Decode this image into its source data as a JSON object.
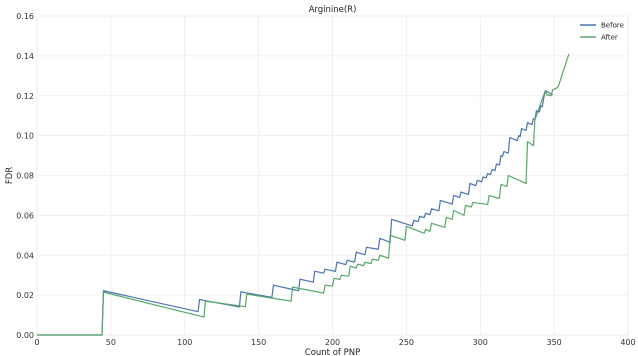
{
  "chart_data": {
    "type": "line",
    "title": "Arginine(R)",
    "xlabel": "Count of PNP",
    "ylabel": "FDR",
    "xlim": [
      0,
      400
    ],
    "ylim": [
      0,
      0.16
    ],
    "xticks": [
      "0",
      "50",
      "100",
      "150",
      "200",
      "250",
      "300",
      "350",
      "400"
    ],
    "yticks": [
      "0.00",
      "0.02",
      "0.04",
      "0.06",
      "0.08",
      "0.10",
      "0.12",
      "0.14",
      "0.16"
    ],
    "grid": true,
    "legend_position": "top-right",
    "series": [
      {
        "name": "Before",
        "color": "#4c72b0",
        "x": [
          0,
          44,
          45,
          109,
          110,
          114,
          137,
          138,
          142,
          159,
          160,
          172,
          177,
          178,
          184,
          187,
          188,
          192,
          194,
          195,
          198,
          202,
          203,
          207,
          209,
          210,
          212,
          215,
          216,
          220,
          222,
          223,
          231,
          232,
          239,
          240,
          254,
          255,
          258,
          259,
          262,
          263,
          266,
          267,
          272,
          273,
          281,
          282,
          286,
          287,
          292,
          293,
          297,
          298,
          301,
          302,
          304,
          305,
          307,
          308,
          310,
          311,
          313,
          314,
          315,
          316,
          319,
          320,
          325,
          326,
          327,
          328,
          331,
          332,
          335,
          336,
          337,
          338,
          340,
          341,
          342,
          343,
          344,
          349
        ],
        "y": [
          0,
          0,
          0.0222,
          0.0117,
          0.0178,
          0.0172,
          0.0141,
          0.0217,
          0.0211,
          0.0189,
          0.025,
          0.023,
          0.0222,
          0.028,
          0.027,
          0.0265,
          0.032,
          0.0313,
          0.031,
          0.033,
          0.0325,
          0.0319,
          0.0365,
          0.0357,
          0.0353,
          0.0375,
          0.0371,
          0.0366,
          0.0415,
          0.0407,
          0.0403,
          0.044,
          0.043,
          0.0485,
          0.0465,
          0.058,
          0.0547,
          0.0575,
          0.0569,
          0.0595,
          0.0589,
          0.061,
          0.0604,
          0.0633,
          0.0623,
          0.0675,
          0.0656,
          0.07,
          0.069,
          0.0717,
          0.0705,
          0.076,
          0.0749,
          0.0776,
          0.0768,
          0.0793,
          0.0788,
          0.081,
          0.0805,
          0.083,
          0.0825,
          0.0858,
          0.0853,
          0.09,
          0.0895,
          0.092,
          0.0912,
          0.099,
          0.0975,
          0.1,
          0.0995,
          0.1035,
          0.1026,
          0.1065,
          0.1055,
          0.1085,
          0.108,
          0.1125,
          0.1118,
          0.115,
          0.1145,
          0.119,
          0.1225,
          0.1205
        ]
      },
      {
        "name": "After",
        "color": "#55a868",
        "x": [
          0,
          44,
          45,
          113,
          114,
          141,
          142,
          172,
          173,
          194,
          195,
          200,
          201,
          205,
          206,
          211,
          212,
          216,
          217,
          221,
          222,
          226,
          227,
          231,
          232,
          238,
          239,
          249,
          250,
          262,
          263,
          266,
          267,
          276,
          277,
          281,
          282,
          289,
          290,
          294,
          295,
          305,
          306,
          313,
          314,
          318,
          319,
          331,
          332,
          336,
          337,
          344,
          345,
          348,
          349,
          352,
          353,
          360
        ],
        "y": [
          0,
          0,
          0.0215,
          0.009,
          0.017,
          0.0142,
          0.0205,
          0.017,
          0.024,
          0.021,
          0.025,
          0.0245,
          0.0285,
          0.0278,
          0.03,
          0.0295,
          0.0345,
          0.0336,
          0.0355,
          0.0348,
          0.0365,
          0.0358,
          0.038,
          0.0375,
          0.04,
          0.0385,
          0.05,
          0.0475,
          0.0545,
          0.051,
          0.053,
          0.052,
          0.056,
          0.054,
          0.059,
          0.058,
          0.0625,
          0.06,
          0.065,
          0.0642,
          0.0665,
          0.0655,
          0.07,
          0.0685,
          0.0755,
          0.0745,
          0.08,
          0.076,
          0.097,
          0.095,
          0.108,
          0.1225,
          0.1205,
          0.12,
          0.123,
          0.124,
          0.125,
          0.141
        ]
      }
    ]
  }
}
